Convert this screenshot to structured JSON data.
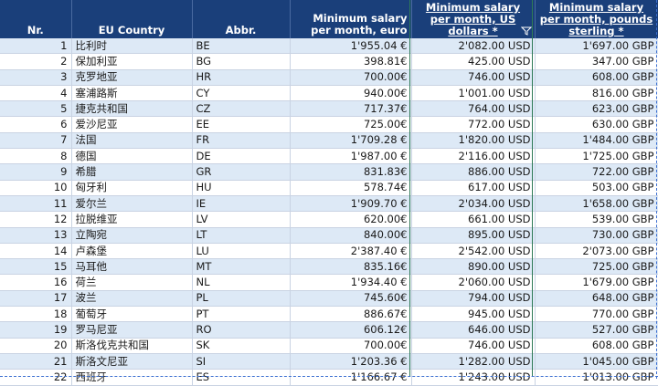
{
  "header": {
    "nr": "Nr.",
    "country": "EU Country",
    "abbr": "Abbr.",
    "eur": "Minimum salary per month, euro",
    "usd": "Minimum salary per month, US dollars *",
    "gbp": "Minimum salary per month, pounds sterling *",
    "filter_icon": "filter-icon"
  },
  "rows": [
    {
      "nr": "1",
      "country": "比利时",
      "abbr": "BE",
      "eur": "1'955.04 €",
      "usd": "2'082.00 USD",
      "gbp": "1'697.00 GBP"
    },
    {
      "nr": "2",
      "country": "保加利亚",
      "abbr": "BG",
      "eur": "398.81€",
      "usd": "425.00 USD",
      "gbp": "347.00 GBP"
    },
    {
      "nr": "3",
      "country": "克罗地亚",
      "abbr": "HR",
      "eur": "700.00€",
      "usd": "746.00 USD",
      "gbp": "608.00 GBP"
    },
    {
      "nr": "4",
      "country": "塞浦路斯",
      "abbr": "CY",
      "eur": "940.00€",
      "usd": "1'001.00 USD",
      "gbp": "816.00 GBP"
    },
    {
      "nr": "5",
      "country": "捷克共和国",
      "abbr": "CZ",
      "eur": "717.37€",
      "usd": "764.00 USD",
      "gbp": "623.00 GBP"
    },
    {
      "nr": "6",
      "country": "爱沙尼亚",
      "abbr": "EE",
      "eur": "725.00€",
      "usd": "772.00 USD",
      "gbp": "630.00 GBP"
    },
    {
      "nr": "7",
      "country": "法国",
      "abbr": "FR",
      "eur": "1'709.28 €",
      "usd": "1'820.00 USD",
      "gbp": "1'484.00 GBP"
    },
    {
      "nr": "8",
      "country": "德国",
      "abbr": "DE",
      "eur": "1'987.00 €",
      "usd": "2'116.00 USD",
      "gbp": "1'725.00 GBP"
    },
    {
      "nr": "9",
      "country": "希腊",
      "abbr": "GR",
      "eur": "831.83€",
      "usd": "886.00 USD",
      "gbp": "722.00 GBP"
    },
    {
      "nr": "10",
      "country": "匈牙利",
      "abbr": "HU",
      "eur": "578.74€",
      "usd": "617.00 USD",
      "gbp": "503.00 GBP"
    },
    {
      "nr": "11",
      "country": "爱尔兰",
      "abbr": "IE",
      "eur": "1'909.70 €",
      "usd": "2'034.00 USD",
      "gbp": "1'658.00 GBP"
    },
    {
      "nr": "12",
      "country": "拉脱维亚",
      "abbr": "LV",
      "eur": "620.00€",
      "usd": "661.00 USD",
      "gbp": "539.00 GBP"
    },
    {
      "nr": "13",
      "country": "立陶宛",
      "abbr": "LT",
      "eur": "840.00€",
      "usd": "895.00 USD",
      "gbp": "730.00 GBP"
    },
    {
      "nr": "14",
      "country": "卢森堡",
      "abbr": "LU",
      "eur": "2'387.40 €",
      "usd": "2'542.00 USD",
      "gbp": "2'073.00 GBP"
    },
    {
      "nr": "15",
      "country": "马耳他",
      "abbr": "MT",
      "eur": "835.16€",
      "usd": "890.00 USD",
      "gbp": "725.00 GBP"
    },
    {
      "nr": "16",
      "country": "荷兰",
      "abbr": "NL",
      "eur": "1'934.40 €",
      "usd": "2'060.00 USD",
      "gbp": "1'679.00 GBP"
    },
    {
      "nr": "17",
      "country": "波兰",
      "abbr": "PL",
      "eur": "745.60€",
      "usd": "794.00 USD",
      "gbp": "648.00 GBP"
    },
    {
      "nr": "18",
      "country": "葡萄牙",
      "abbr": "PT",
      "eur": "886.67€",
      "usd": "945.00 USD",
      "gbp": "770.00 GBP"
    },
    {
      "nr": "19",
      "country": "罗马尼亚",
      "abbr": "RO",
      "eur": "606.12€",
      "usd": "646.00 USD",
      "gbp": "527.00 GBP"
    },
    {
      "nr": "20",
      "country": "斯洛伐克共和国",
      "abbr": "SK",
      "eur": "700.00€",
      "usd": "746.00 USD",
      "gbp": "608.00 GBP"
    },
    {
      "nr": "21",
      "country": "斯洛文尼亚",
      "abbr": "SI",
      "eur": "1'203.36 €",
      "usd": "1'282.00 USD",
      "gbp": "1'045.00 GBP"
    },
    {
      "nr": "22",
      "country": "西班牙",
      "abbr": "ES",
      "eur": "1'166.67 €",
      "usd": "1'243.00 USD",
      "gbp": "1'013.00 GBP"
    }
  ]
}
